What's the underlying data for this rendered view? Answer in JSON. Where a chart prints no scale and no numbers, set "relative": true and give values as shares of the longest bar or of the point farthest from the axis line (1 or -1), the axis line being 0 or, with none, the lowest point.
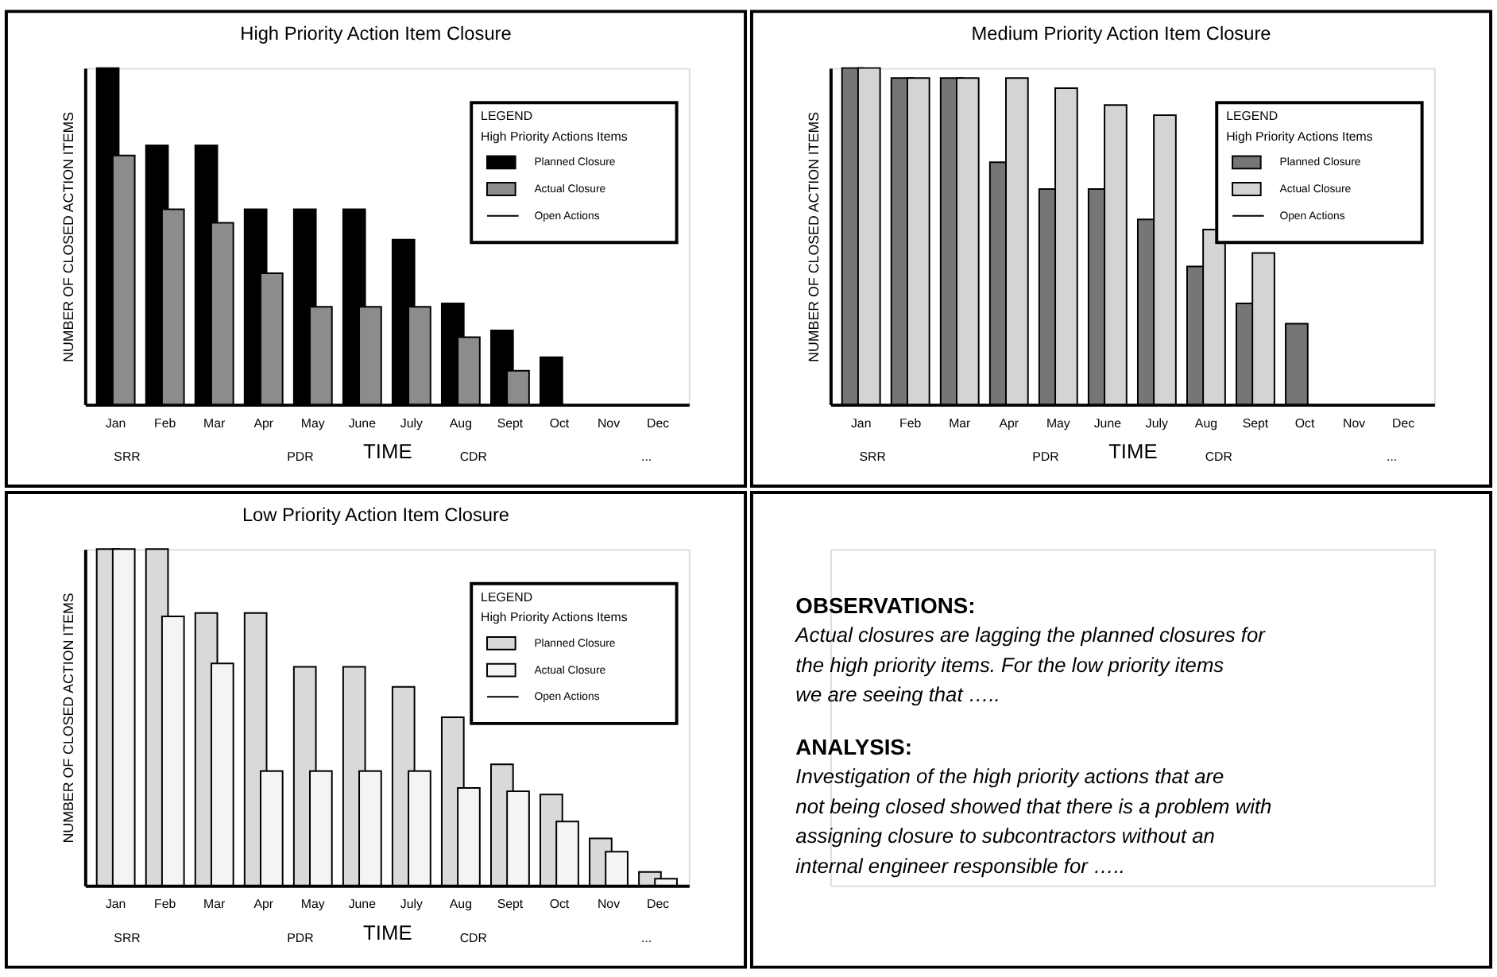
{
  "chart_data": [
    {
      "type": "bar",
      "relative": true,
      "title": "High Priority Action Item Closure",
      "xlabel": "TIME",
      "ylabel": "NUMBER OF CLOSED ACTION ITEMS",
      "legend_title": "LEGEND\nHigh Priority Actions Items",
      "legend": "top right",
      "categories": [
        "Jan",
        "Feb",
        "Mar",
        "Apr",
        "May",
        "June",
        "July",
        "Aug",
        "Sept",
        "Oct",
        "Nov",
        "Dec"
      ],
      "series": [
        {
          "name": "Planned Closure",
          "type": "bar",
          "color": "#000000",
          "values": [
            1,
            0.77,
            0.77,
            0.58,
            0.58,
            0.58,
            0.49,
            0.3,
            0.22,
            0.14,
            null,
            null
          ]
        },
        {
          "name": "Actual Closure",
          "type": "bar",
          "color": "#8c8c8c",
          "values": [
            0.74,
            0.58,
            0.54,
            0.39,
            0.29,
            0.29,
            0.29,
            0.2,
            0.1,
            null,
            null,
            null
          ]
        },
        {
          "name": "Open Actions",
          "type": "line",
          "color": "#000000",
          "values": [
            null,
            null,
            null,
            null,
            null,
            null,
            null,
            null,
            null,
            null,
            null,
            null
          ]
        }
      ],
      "annotations": [
        "SRR",
        "PDR",
        "CDR",
        "..."
      ]
    },
    {
      "type": "bar",
      "relative": true,
      "title": "Medium Priority Action Item Closure",
      "xlabel": "TIME",
      "ylabel": "NUMBER OF CLOSED ACTION ITEMS",
      "legend_title": "LEGEND\nHigh Priority Actions Items",
      "legend": "top right",
      "categories": [
        "Jan",
        "Feb",
        "Mar",
        "Apr",
        "May",
        "June",
        "July",
        "Aug",
        "Sept",
        "Oct",
        "Nov",
        "Dec"
      ],
      "series": [
        {
          "name": "Planned Closure",
          "type": "bar",
          "color": "#767676",
          "values": [
            1,
            0.97,
            0.97,
            0.72,
            0.64,
            0.64,
            0.55,
            0.41,
            0.3,
            0.24,
            null,
            null
          ]
        },
        {
          "name": "Actual Closure",
          "type": "bar",
          "color": "#d4d4d4",
          "values": [
            1,
            0.97,
            0.97,
            0.97,
            0.94,
            0.89,
            0.86,
            0.52,
            0.45,
            null,
            null,
            null
          ]
        },
        {
          "name": "Open Actions",
          "type": "line",
          "color": "#000000",
          "values": [
            null,
            null,
            null,
            null,
            null,
            null,
            null,
            null,
            null,
            null,
            null,
            null
          ]
        }
      ],
      "annotations": [
        "SRR",
        "PDR",
        "CDR",
        "..."
      ]
    },
    {
      "type": "bar",
      "relative": true,
      "title": "Low Priority Action Item Closure",
      "xlabel": "TIME",
      "ylabel": "NUMBER OF CLOSED ACTION ITEMS",
      "legend_title": "LEGEND\nHigh Priority Actions Items",
      "legend": "top right",
      "categories": [
        "Jan",
        "Feb",
        "Mar",
        "Apr",
        "May",
        "June",
        "July",
        "Aug",
        "Sept",
        "Oct",
        "Nov",
        "Dec"
      ],
      "series": [
        {
          "name": "Planned Closure",
          "type": "bar",
          "color": "#d9d9d9",
          "values": [
            1,
            1,
            0.81,
            0.81,
            0.65,
            0.65,
            0.59,
            0.5,
            0.36,
            0.27,
            0.14,
            0.04
          ]
        },
        {
          "name": "Actual Closure",
          "type": "bar",
          "color": "#f4f4f4",
          "values": [
            1,
            0.8,
            0.66,
            0.34,
            0.34,
            0.34,
            0.34,
            0.29,
            0.28,
            0.19,
            0.1,
            0.02
          ]
        },
        {
          "name": "Open Actions",
          "type": "line",
          "color": "#000000",
          "values": [
            null,
            null,
            null,
            null,
            null,
            null,
            null,
            null,
            null,
            null,
            null,
            null
          ]
        }
      ],
      "annotations": [
        "SRR",
        "PDR",
        "CDR",
        "..."
      ]
    },
    {
      "type": "other",
      "annotations": [
        "OBSERVATIONS:",
        "Actual closures are lagging the planned closures for the high priority items.  For the low priority items we are seeing that …..",
        "ANALYSIS:",
        "Investigation of the high priority actions that are not being closed showed that there is a problem with assigning closure to subcontractors without an internal engineer responsible for ….."
      ]
    }
  ]
}
